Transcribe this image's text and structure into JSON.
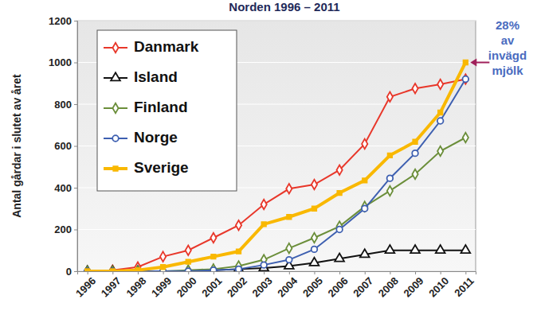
{
  "chart_data": {
    "type": "line",
    "title": "Norden 1996 – 2011",
    "y_label": "Antal gårdar i slutet av året",
    "categories": [
      "1996",
      "1997",
      "1998",
      "1999",
      "2000",
      "2001",
      "2002",
      "2003",
      "2004",
      "2005",
      "2006",
      "2007",
      "2008",
      "2009",
      "2010",
      "2011"
    ],
    "series": [
      {
        "name": "Danmark",
        "color": "#e8372a",
        "marker": "diamond",
        "values": [
          0,
          5,
          20,
          70,
          100,
          160,
          220,
          320,
          395,
          415,
          485,
          610,
          835,
          875,
          895,
          920
        ]
      },
      {
        "name": "Island",
        "color": "#111111",
        "marker": "triangle",
        "values": [
          0,
          0,
          0,
          0,
          0,
          5,
          10,
          15,
          25,
          40,
          60,
          80,
          100,
          100,
          100,
          100
        ]
      },
      {
        "name": "Finland",
        "color": "#6b8e3a",
        "marker": "diamond",
        "values": [
          0,
          0,
          0,
          0,
          5,
          10,
          25,
          55,
          110,
          160,
          215,
          310,
          385,
          465,
          575,
          640
        ]
      },
      {
        "name": "Norge",
        "color": "#3d5fb0",
        "marker": "circle",
        "values": [
          0,
          0,
          0,
          0,
          0,
          5,
          10,
          30,
          55,
          105,
          200,
          300,
          445,
          565,
          720,
          920
        ]
      },
      {
        "name": "Sverige",
        "color": "#f9b800",
        "marker": "square",
        "values": [
          0,
          0,
          5,
          20,
          45,
          70,
          95,
          225,
          260,
          300,
          375,
          435,
          555,
          620,
          760,
          1000
        ]
      }
    ],
    "ylim": [
      0,
      1200
    ],
    "yticks": [
      0,
      200,
      400,
      600,
      800,
      1000,
      1200
    ],
    "grid": true,
    "legend": "top-left",
    "annotation": [
      "28%",
      "av",
      "invägd",
      "mjölk"
    ]
  }
}
